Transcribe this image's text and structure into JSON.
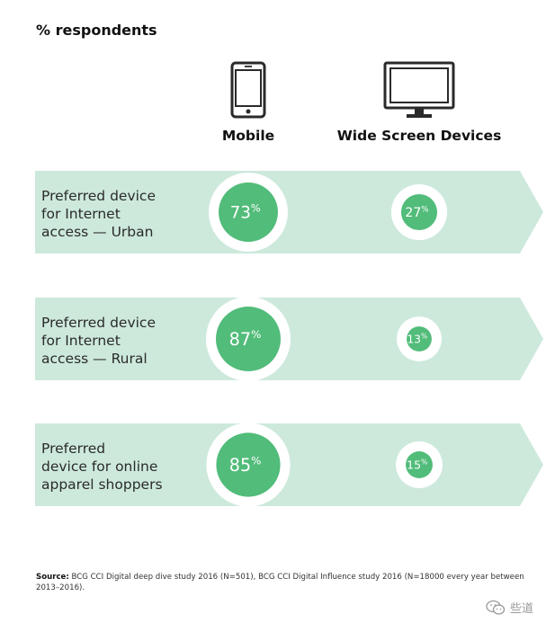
{
  "subtitle": "% respondents",
  "columns": [
    {
      "label": "Mobile",
      "icon": "mobile-phone-icon"
    },
    {
      "label": "Wide Screen Devices",
      "icon": "monitor-icon"
    }
  ],
  "colors": {
    "band": "#cde9dc",
    "bubble": "#52bc7a",
    "bubble_text": "#ffffff",
    "text": "#1a1a1a"
  },
  "chart_data": {
    "type": "bubble",
    "unit": "%",
    "categories": [
      "Preferred device\nfor Internet\naccess — Urban",
      "Preferred device\nfor Internet\naccess — Rural",
      "Preferred\ndevice for online\napparel shoppers"
    ],
    "series": [
      {
        "name": "Mobile",
        "values": [
          73,
          87,
          85
        ]
      },
      {
        "name": "Wide Screen Devices",
        "values": [
          27,
          13,
          15
        ]
      }
    ]
  },
  "source": {
    "label": "Source:",
    "text": " BCG CCI Digital deep dive study 2016 (N=501), BCG CCI Digital Influence study 2016 (N=18000 every year between 2013–2016)."
  },
  "watermark": {
    "text": "些道",
    "icon": "wechat-icon"
  }
}
